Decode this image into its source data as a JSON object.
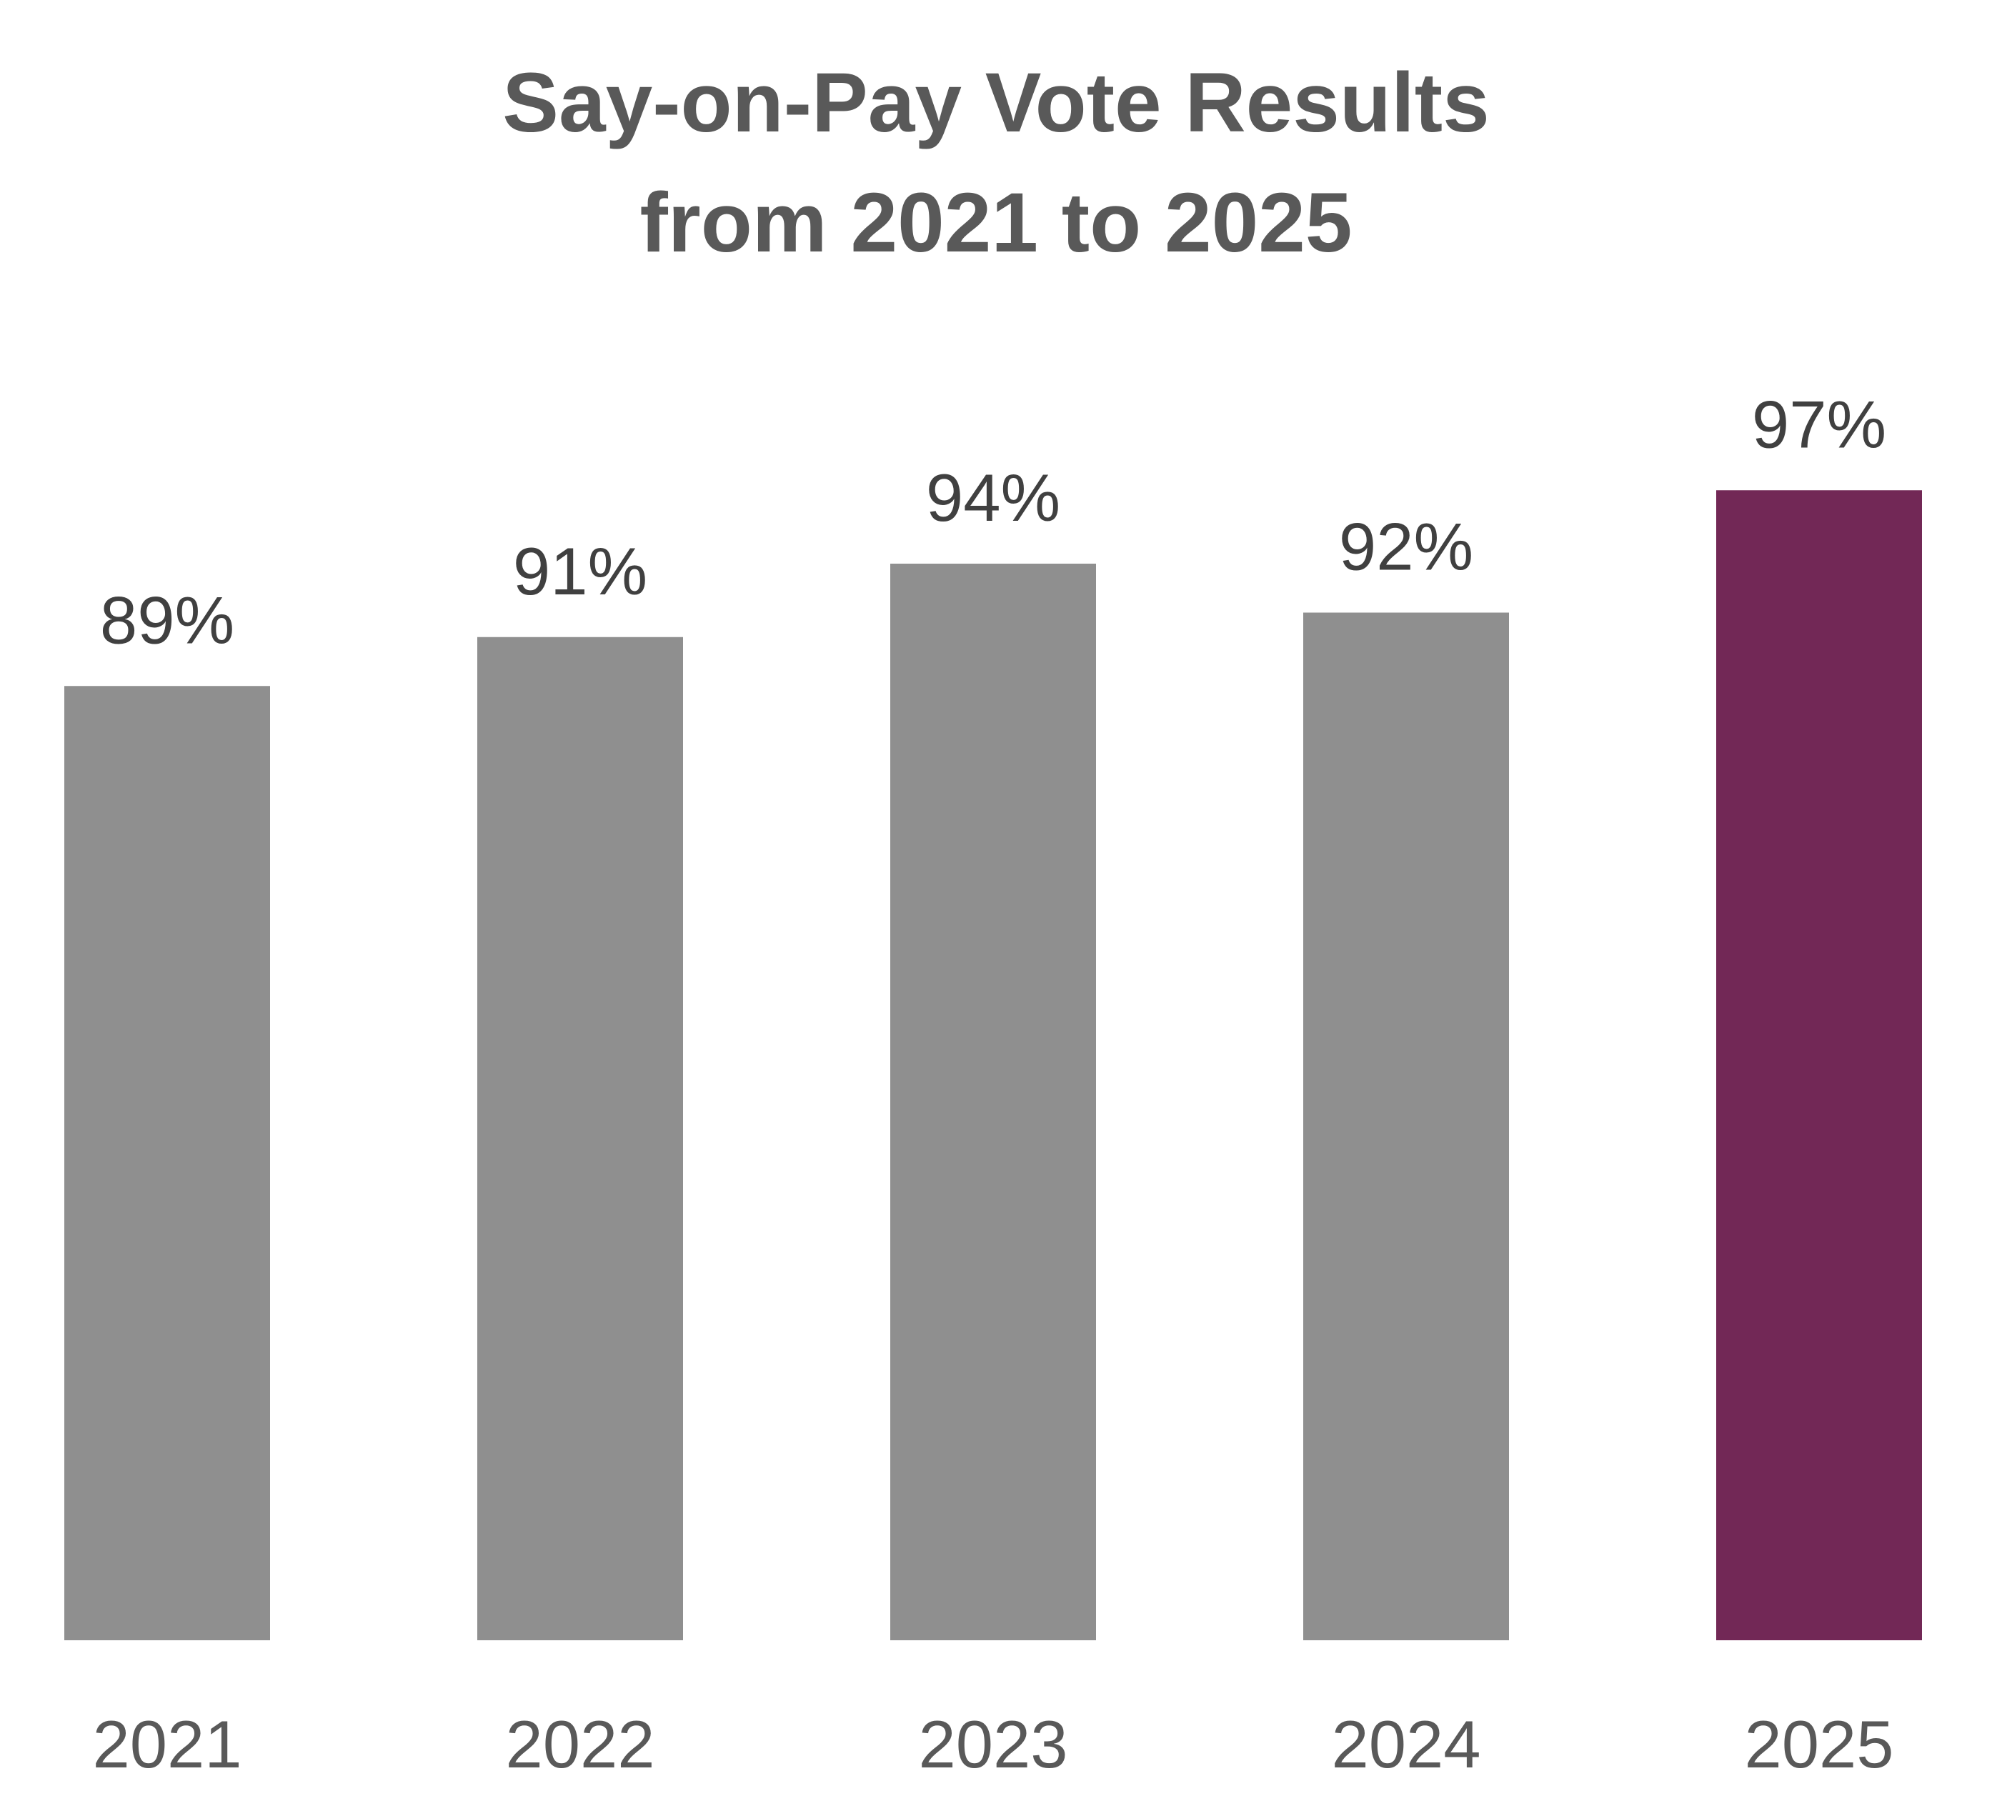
{
  "chart_data": {
    "type": "bar",
    "title": "Say-on-Pay Vote Results from 2021 to 2025",
    "title_lines": [
      "Say-on-Pay Vote Results",
      "from 2021 to 2025"
    ],
    "categories": [
      "2021",
      "2022",
      "2023",
      "2024",
      "2025"
    ],
    "values": [
      89,
      91,
      94,
      92,
      97
    ],
    "data_labels": [
      "89%",
      "91%",
      "94%",
      "92%",
      "97%"
    ],
    "unit": "%",
    "xlabel": "",
    "ylabel": "",
    "ylim": [
      50,
      100
    ],
    "grid": false,
    "legend": "none",
    "colors": {
      "default_bar": "#8f8f8f",
      "highlight_bar": "#722856",
      "highlight_category": "2025",
      "title": "#595959",
      "label": "#404040"
    }
  }
}
